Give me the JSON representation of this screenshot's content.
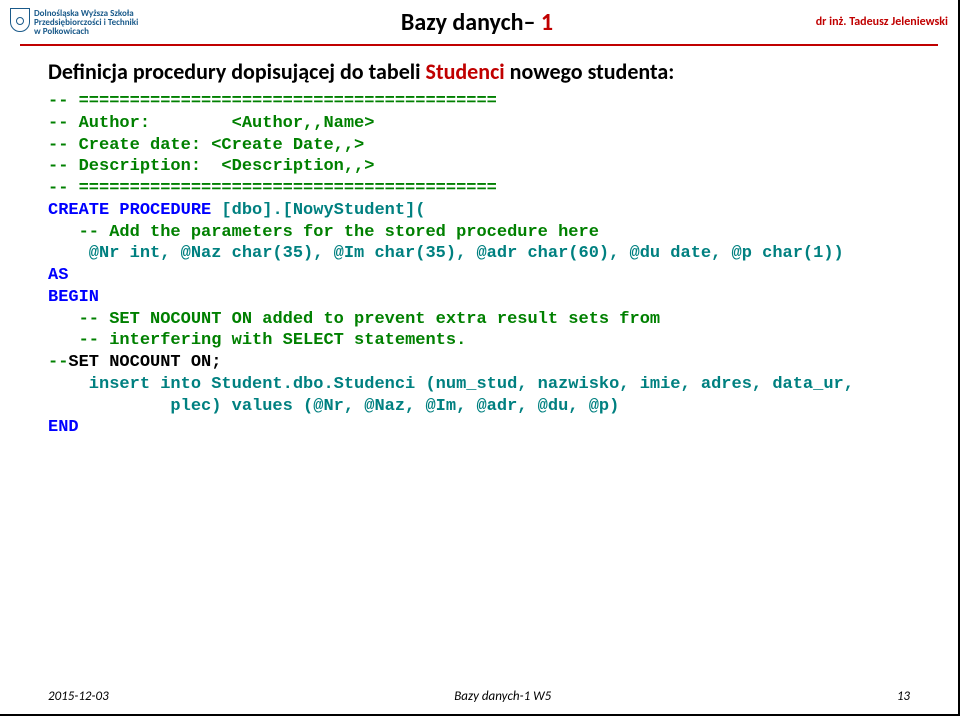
{
  "header": {
    "logo_text": "Dolnośląska Wyższa Szkoła\nPrzedsiębiorczości i Techniki\nw Polkowicach",
    "title_prefix": "Bazy danych– ",
    "title_num": "1",
    "author": "dr inż. Tadeusz Jeleniewski"
  },
  "heading": {
    "t1": "Definicja procedury dopisującej do tabeli ",
    "t2": "Studenci",
    "t3": " nowego studenta:"
  },
  "code": {
    "l01a": "--",
    "l01b": " =========================================",
    "l02a": "--",
    "l02b": " Author:        <Author,,Name>",
    "l03a": "--",
    "l03b": " Create date: <Create Date,,>",
    "l04a": "--",
    "l04b": " Description:  <Description,,>",
    "l05a": "--",
    "l05b": " =========================================",
    "l06a": "CREATE PROCEDURE",
    "l06b": " [dbo].[NowyStudent](",
    "l07a": "   --",
    "l07b": " Add the parameters for the stored procedure here",
    "l08": "    @Nr int, @Naz char(35), @Im char(35), @adr char(60), @du date, @p char(1))",
    "l09": "AS",
    "l10": "BEGIN",
    "l11a": "   --",
    "l11b": " SET NOCOUNT ON added to prevent extra result sets from",
    "l12a": "   --",
    "l12b": " interfering with SELECT statements.",
    "l13a": "--",
    "l13b": "SET NOCOUNT ON;",
    "l14": "    insert into Student.dbo.Studenci (num_stud, nazwisko, imie, adres, data_ur,",
    "l15": "            plec) values (@Nr, @Naz, @Im, @adr, @du, @p)",
    "l16": "END"
  },
  "footer": {
    "date": "2015-12-03",
    "mid": "Bazy danych-1 W5",
    "page": "13"
  }
}
